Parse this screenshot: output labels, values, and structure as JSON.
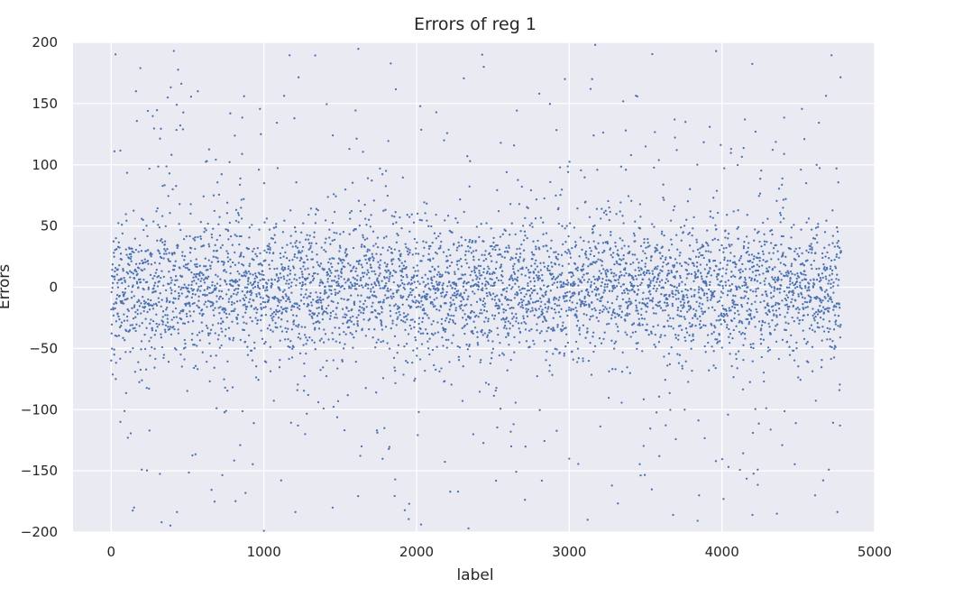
{
  "chart_data": {
    "type": "scatter",
    "title": "Errors of reg 1",
    "xlabel": "label",
    "ylabel": "Errors",
    "xlim": [
      -250,
      5000
    ],
    "ylim": [
      -200,
      200
    ],
    "x_ticks": [
      0,
      1000,
      2000,
      3000,
      4000,
      5000
    ],
    "y_ticks": [
      -200,
      -150,
      -100,
      -50,
      0,
      50,
      100,
      150,
      200
    ],
    "x_tick_labels": [
      "0",
      "1000",
      "2000",
      "3000",
      "4000",
      "5000"
    ],
    "y_tick_labels": [
      "−200",
      "−150",
      "−100",
      "−50",
      "0",
      "50",
      "100",
      "150",
      "200"
    ],
    "grid": true,
    "legend": "none",
    "colors": {
      "point": "#4c72b0",
      "background": "#eaeaf2",
      "grid": "#ffffff"
    },
    "series": [
      {
        "x_range": [
          0,
          4780
        ],
        "n_points": 4780,
        "typical_band": [
          -50,
          50
        ],
        "notes": "dense cloud around 0, sparse outliers up to ±200",
        "points": [
          [
            410,
            193
          ],
          [
            2430,
            190
          ],
          [
            2440,
            180
          ],
          [
            3170,
            198
          ],
          [
            3150,
            170
          ],
          [
            3140,
            162
          ],
          [
            370,
            155
          ],
          [
            870,
            156
          ],
          [
            780,
            142
          ],
          [
            240,
            144
          ],
          [
            2180,
            120
          ],
          [
            1200,
            138
          ],
          [
            3160,
            124
          ],
          [
            3690,
            137
          ],
          [
            3920,
            131
          ],
          [
            4150,
            137
          ],
          [
            4540,
            121
          ],
          [
            980,
            125
          ],
          [
            2350,
            103
          ],
          [
            1560,
            113
          ],
          [
            4060,
            113
          ],
          [
            3370,
            128
          ],
          [
            2220,
            -167
          ],
          [
            3120,
            -190
          ],
          [
            330,
            -192
          ],
          [
            1000,
            -199
          ],
          [
            2340,
            -197
          ],
          [
            4360,
            -185
          ],
          [
            4200,
            -186
          ],
          [
            3680,
            -186
          ],
          [
            3850,
            -170
          ],
          [
            3960,
            -142
          ],
          [
            4010,
            -173
          ],
          [
            1860,
            -157
          ],
          [
            2520,
            -158
          ],
          [
            2820,
            -158
          ],
          [
            3280,
            -162
          ],
          [
            1450,
            -180
          ],
          [
            880,
            -168
          ],
          [
            150,
            -180
          ],
          [
            60,
            -110
          ],
          [
            30,
            -75
          ],
          [
            20,
            -55
          ],
          [
            200,
            -149
          ],
          [
            4700,
            -149
          ],
          [
            4610,
            -170
          ],
          [
            3590,
            -138
          ],
          [
            3000,
            -140
          ],
          [
            1640,
            -130
          ],
          [
            1270,
            -120
          ],
          [
            2620,
            -130
          ],
          [
            1800,
            95
          ],
          [
            2590,
            94
          ],
          [
            3500,
            115
          ],
          [
            4620,
            100
          ],
          [
            4750,
            97
          ]
        ]
      }
    ]
  }
}
